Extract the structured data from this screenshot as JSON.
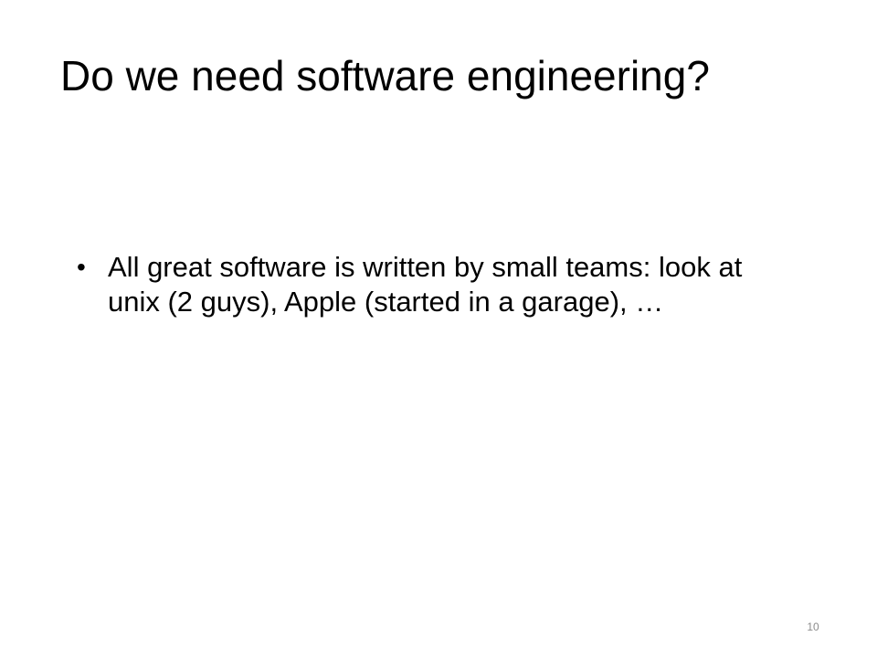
{
  "slide": {
    "title": "Do we need software engineering?",
    "bullets": [
      {
        "marker": "•",
        "text": "All great software is written by small teams: look at unix (2 guys), Apple (started in a garage), …"
      }
    ],
    "page_number": "10"
  }
}
